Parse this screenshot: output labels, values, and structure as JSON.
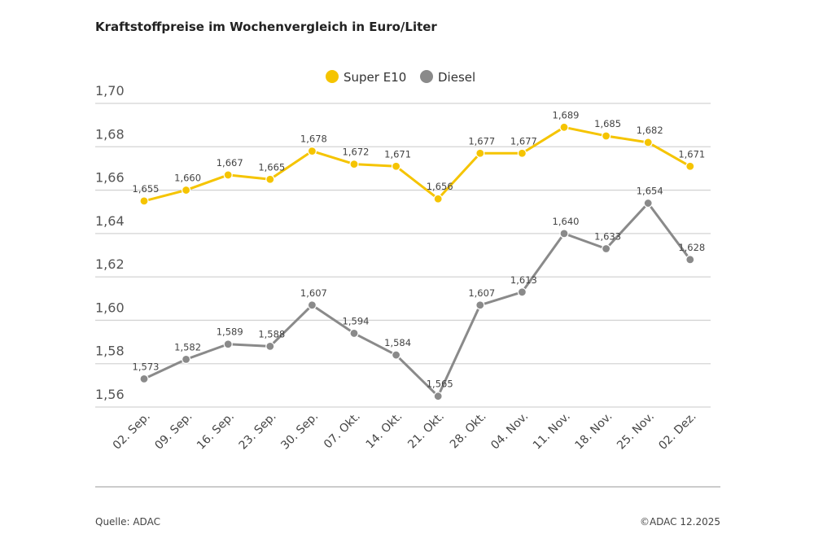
{
  "chart_data": {
    "type": "line",
    "title": "Kraftstoffpreise im Wochenvergleich in Euro/Liter",
    "categories": [
      "02. Sep.",
      "09. Sep.",
      "16. Sep.",
      "23. Sep.",
      "30. Sep.",
      "07. Okt.",
      "14. Okt.",
      "21. Okt.",
      "28. Okt.",
      "04. Nov.",
      "11. Nov.",
      "18. Nov.",
      "25. Nov.",
      "02. Dez."
    ],
    "series": [
      {
        "name": "Super E10",
        "color": "#f5c400",
        "values": [
          1.655,
          1.66,
          1.667,
          1.665,
          1.678,
          1.672,
          1.671,
          1.656,
          1.677,
          1.677,
          1.689,
          1.685,
          1.682,
          1.671
        ]
      },
      {
        "name": "Diesel",
        "color": "#8a8a8a",
        "values": [
          1.573,
          1.582,
          1.589,
          1.588,
          1.607,
          1.594,
          1.584,
          1.565,
          1.607,
          1.613,
          1.64,
          1.633,
          1.654,
          1.628
        ]
      }
    ],
    "ylim": [
      1.56,
      1.7
    ],
    "yticks": [
      "1,56",
      "1,58",
      "1,60",
      "1,62",
      "1,64",
      "1,66",
      "1,68",
      "1,70"
    ],
    "grid": true,
    "legend": "top-center",
    "decimal_separator": ","
  },
  "footer": {
    "source": "Quelle: ADAC",
    "copyright": "©ADAC 12.2025"
  }
}
